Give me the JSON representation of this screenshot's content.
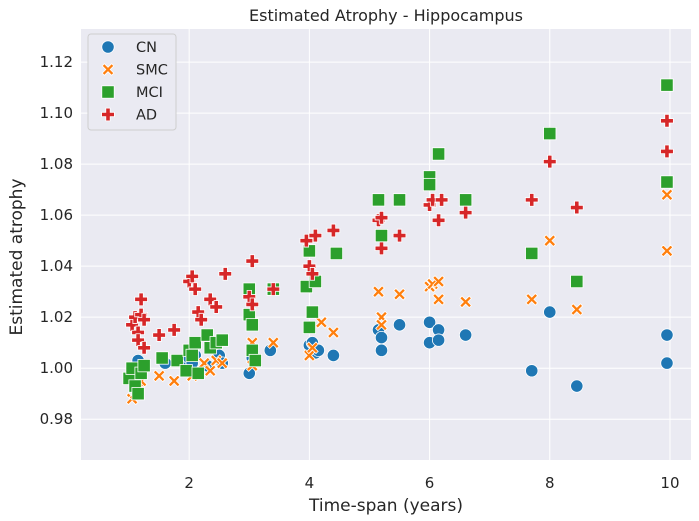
{
  "chart_data": {
    "type": "scatter",
    "title": "Estimated Atrophy - Hippocampus",
    "xlabel": "Time-span (years)",
    "ylabel": "Estimated atrophy",
    "xlim": [
      0.2,
      10.35
    ],
    "ylim": [
      0.964,
      1.133
    ],
    "xticks": [
      2,
      4,
      6,
      8,
      10
    ],
    "xtick_labels": [
      "2",
      "4",
      "6",
      "8",
      "10"
    ],
    "yticks": [
      0.98,
      1.0,
      1.02,
      1.04,
      1.06,
      1.08,
      1.1,
      1.12
    ],
    "ytick_labels": [
      "0.98",
      "1.00",
      "1.02",
      "1.04",
      "1.06",
      "1.08",
      "1.10",
      "1.12"
    ],
    "grid": true,
    "legend_position": "top-left",
    "colors": {
      "background": "#eaeaf2",
      "grid": "#ffffff",
      "CN": "#1f77b4",
      "SMC": "#ff7f0e",
      "MCI": "#2ca02c",
      "AD": "#d62728"
    },
    "series": [
      {
        "name": "CN",
        "marker": "circle",
        "points": [
          [
            1.05,
            0.996
          ],
          [
            1.1,
            1.0
          ],
          [
            1.15,
            1.003
          ],
          [
            1.2,
            0.998
          ],
          [
            1.6,
            1.002
          ],
          [
            1.95,
            1.001
          ],
          [
            2.0,
            1.004
          ],
          [
            2.05,
            1.002
          ],
          [
            2.1,
            1.005
          ],
          [
            2.3,
            1.001
          ],
          [
            2.5,
            1.005
          ],
          [
            2.55,
            1.002
          ],
          [
            3.0,
            0.998
          ],
          [
            3.05,
            1.004
          ],
          [
            3.35,
            1.007
          ],
          [
            4.0,
            1.009
          ],
          [
            4.05,
            1.01
          ],
          [
            4.1,
            1.006
          ],
          [
            4.15,
            1.007
          ],
          [
            4.4,
            1.005
          ],
          [
            5.15,
            1.015
          ],
          [
            5.2,
            1.012
          ],
          [
            5.2,
            1.007
          ],
          [
            5.5,
            1.017
          ],
          [
            6.0,
            1.018
          ],
          [
            6.0,
            1.01
          ],
          [
            6.15,
            1.015
          ],
          [
            6.15,
            1.011
          ],
          [
            6.6,
            1.013
          ],
          [
            7.7,
            0.999
          ],
          [
            8.0,
            1.022
          ],
          [
            8.45,
            0.993
          ],
          [
            9.95,
            1.013
          ],
          [
            9.95,
            1.002
          ]
        ]
      },
      {
        "name": "SMC",
        "marker": "x",
        "points": [
          [
            1.05,
            0.988
          ],
          [
            1.1,
            0.99
          ],
          [
            1.15,
            0.992
          ],
          [
            1.2,
            0.995
          ],
          [
            1.5,
            0.997
          ],
          [
            1.75,
            0.995
          ],
          [
            2.05,
            0.997
          ],
          [
            2.25,
            1.002
          ],
          [
            2.35,
            0.999
          ],
          [
            2.45,
            1.003
          ],
          [
            2.55,
            1.002
          ],
          [
            3.05,
            1.001
          ],
          [
            3.05,
            1.01
          ],
          [
            3.4,
            1.01
          ],
          [
            4.0,
            1.005
          ],
          [
            4.05,
            1.008
          ],
          [
            4.2,
            1.018
          ],
          [
            4.4,
            1.014
          ],
          [
            5.15,
            1.03
          ],
          [
            5.2,
            1.02
          ],
          [
            5.2,
            1.017
          ],
          [
            5.5,
            1.029
          ],
          [
            6.0,
            1.032
          ],
          [
            6.05,
            1.033
          ],
          [
            6.15,
            1.034
          ],
          [
            6.15,
            1.027
          ],
          [
            6.6,
            1.026
          ],
          [
            7.7,
            1.027
          ],
          [
            8.0,
            1.05
          ],
          [
            8.45,
            1.023
          ],
          [
            9.95,
            1.068
          ],
          [
            9.95,
            1.046
          ]
        ]
      },
      {
        "name": "MCI",
        "marker": "square",
        "points": [
          [
            1.0,
            0.996
          ],
          [
            1.05,
            1.0
          ],
          [
            1.1,
            0.993
          ],
          [
            1.15,
            0.99
          ],
          [
            1.2,
            0.998
          ],
          [
            1.25,
            1.001
          ],
          [
            1.55,
            1.004
          ],
          [
            1.8,
            1.003
          ],
          [
            1.95,
            0.999
          ],
          [
            2.0,
            1.007
          ],
          [
            2.05,
            1.005
          ],
          [
            2.1,
            1.01
          ],
          [
            2.15,
            0.998
          ],
          [
            2.3,
            1.013
          ],
          [
            2.35,
            1.008
          ],
          [
            2.45,
            1.01
          ],
          [
            2.55,
            1.011
          ],
          [
            3.0,
            1.031
          ],
          [
            3.0,
            1.021
          ],
          [
            3.05,
            1.017
          ],
          [
            3.05,
            1.007
          ],
          [
            3.1,
            1.003
          ],
          [
            3.4,
            1.031
          ],
          [
            3.95,
            1.032
          ],
          [
            4.0,
            1.046
          ],
          [
            4.0,
            1.016
          ],
          [
            4.05,
            1.022
          ],
          [
            4.1,
            1.034
          ],
          [
            4.45,
            1.045
          ],
          [
            5.15,
            1.066
          ],
          [
            5.2,
            1.052
          ],
          [
            5.5,
            1.066
          ],
          [
            6.0,
            1.075
          ],
          [
            6.0,
            1.072
          ],
          [
            6.15,
            1.084
          ],
          [
            6.6,
            1.066
          ],
          [
            7.7,
            1.045
          ],
          [
            8.0,
            1.092
          ],
          [
            8.45,
            1.034
          ],
          [
            9.95,
            1.111
          ],
          [
            9.95,
            1.073
          ]
        ]
      },
      {
        "name": "AD",
        "marker": "plus",
        "points": [
          [
            1.05,
            1.017
          ],
          [
            1.1,
            1.02
          ],
          [
            1.15,
            1.014
          ],
          [
            1.15,
            1.011
          ],
          [
            1.2,
            1.027
          ],
          [
            1.2,
            1.021
          ],
          [
            1.25,
            1.008
          ],
          [
            1.25,
            1.019
          ],
          [
            1.5,
            1.013
          ],
          [
            1.75,
            1.015
          ],
          [
            2.0,
            1.034
          ],
          [
            2.05,
            1.036
          ],
          [
            2.1,
            1.031
          ],
          [
            2.15,
            1.022
          ],
          [
            2.2,
            1.019
          ],
          [
            2.35,
            1.027
          ],
          [
            2.45,
            1.024
          ],
          [
            2.6,
            1.037
          ],
          [
            3.0,
            1.028
          ],
          [
            3.05,
            1.042
          ],
          [
            3.05,
            1.025
          ],
          [
            3.4,
            1.031
          ],
          [
            3.95,
            1.05
          ],
          [
            4.0,
            1.04
          ],
          [
            4.05,
            1.037
          ],
          [
            4.1,
            1.052
          ],
          [
            4.4,
            1.054
          ],
          [
            5.15,
            1.058
          ],
          [
            5.2,
            1.047
          ],
          [
            5.2,
            1.059
          ],
          [
            5.5,
            1.052
          ],
          [
            6.0,
            1.064
          ],
          [
            6.05,
            1.066
          ],
          [
            6.15,
            1.058
          ],
          [
            6.2,
            1.066
          ],
          [
            6.6,
            1.061
          ],
          [
            7.7,
            1.066
          ],
          [
            8.0,
            1.081
          ],
          [
            8.45,
            1.063
          ],
          [
            9.95,
            1.097
          ],
          [
            9.95,
            1.085
          ]
        ]
      }
    ]
  }
}
